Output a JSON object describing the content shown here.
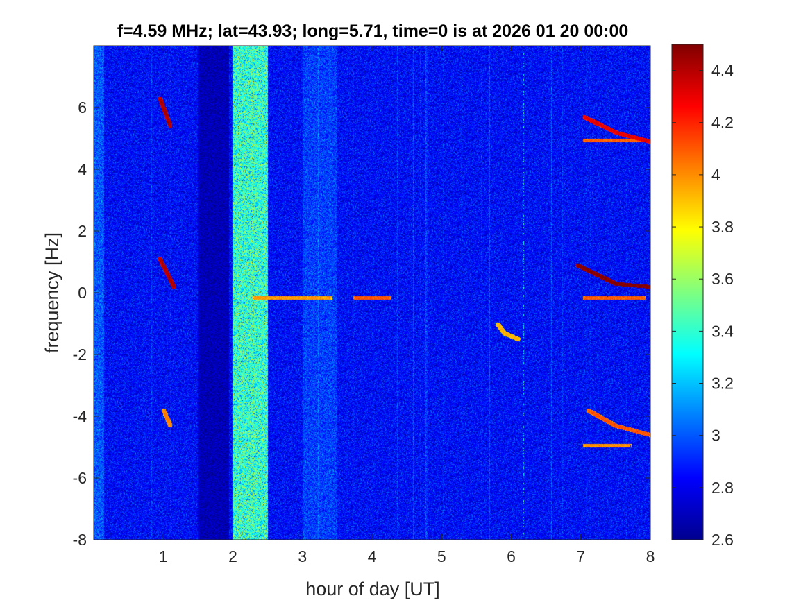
{
  "chart_data": {
    "type": "heatmap",
    "title": "f=4.59 MHz;  lat=43.93; long=5.71, time=0 is at 2026 01 20 00:00",
    "xlabel": "hour of day [UT]",
    "ylabel": "frequency [Hz]",
    "xlim": [
      0,
      8
    ],
    "ylim": [
      -8,
      8
    ],
    "x_ticks": [
      "1",
      "2",
      "3",
      "4",
      "5",
      "6",
      "7",
      "8"
    ],
    "y_ticks": [
      "-8",
      "-6",
      "-4",
      "-2",
      "0",
      "2",
      "4",
      "6"
    ],
    "colormap": "jet",
    "colorbar": {
      "range": [
        2.6,
        4.5
      ],
      "ticks": [
        "2.6",
        "2.8",
        "3",
        "3.2",
        "3.4",
        "3.6",
        "3.8",
        "4",
        "4.2",
        "4.4"
      ]
    },
    "background_level": 2.85,
    "features": [
      {
        "description": "broadband noise band",
        "x_range": [
          2.0,
          2.5
        ],
        "level": 3.4
      },
      {
        "description": "faint vertical band",
        "x_range": [
          0.0,
          0.15
        ],
        "level": 3.0
      },
      {
        "description": "faint vertical band",
        "x_range": [
          3.0,
          3.5
        ],
        "level": 2.95
      },
      {
        "description": "dark band",
        "x_range": [
          1.5,
          1.95
        ],
        "level": 2.7
      },
      {
        "description": "vertical line",
        "x": 6.17,
        "y_range": [
          -8,
          8
        ],
        "level": 3.4
      },
      {
        "description": "Doppler trace",
        "points": [
          [
            0.95,
            6.3
          ],
          [
            1.1,
            5.4
          ]
        ],
        "level": 4.3
      },
      {
        "description": "Doppler trace",
        "points": [
          [
            0.95,
            1.1
          ],
          [
            1.15,
            0.2
          ]
        ],
        "level": 4.3
      },
      {
        "description": "Doppler trace",
        "points": [
          [
            1.0,
            -3.8
          ],
          [
            1.1,
            -4.3
          ]
        ],
        "level": 3.9
      },
      {
        "description": "Doppler trace",
        "points": [
          [
            2.3,
            -0.15
          ],
          [
            3.4,
            -0.15
          ]
        ],
        "level": 3.9
      },
      {
        "description": "Doppler trace",
        "points": [
          [
            3.75,
            -0.15
          ],
          [
            4.25,
            -0.15
          ]
        ],
        "level": 4.0
      },
      {
        "description": "Doppler arc",
        "points": [
          [
            5.8,
            -1.0
          ],
          [
            5.9,
            -1.3
          ],
          [
            6.1,
            -1.5
          ]
        ],
        "level": 3.8
      },
      {
        "description": "Doppler trace",
        "points": [
          [
            7.05,
            5.7
          ],
          [
            7.5,
            5.2
          ],
          [
            8.0,
            4.9
          ]
        ],
        "level": 4.2
      },
      {
        "description": "Doppler trace",
        "points": [
          [
            7.05,
            4.95
          ],
          [
            7.9,
            4.95
          ]
        ],
        "level": 4.0
      },
      {
        "description": "Doppler trace",
        "points": [
          [
            6.95,
            0.9
          ],
          [
            7.5,
            0.3
          ],
          [
            8.0,
            0.2
          ]
        ],
        "level": 4.4
      },
      {
        "description": "Doppler trace",
        "points": [
          [
            7.05,
            -0.15
          ],
          [
            7.9,
            -0.15
          ]
        ],
        "level": 4.0
      },
      {
        "description": "Doppler trace",
        "points": [
          [
            7.1,
            -3.8
          ],
          [
            7.5,
            -4.3
          ],
          [
            8.0,
            -4.6
          ]
        ],
        "level": 4.0
      },
      {
        "description": "Doppler trace",
        "points": [
          [
            7.05,
            -4.95
          ],
          [
            7.7,
            -4.95
          ]
        ],
        "level": 3.9
      }
    ]
  }
}
